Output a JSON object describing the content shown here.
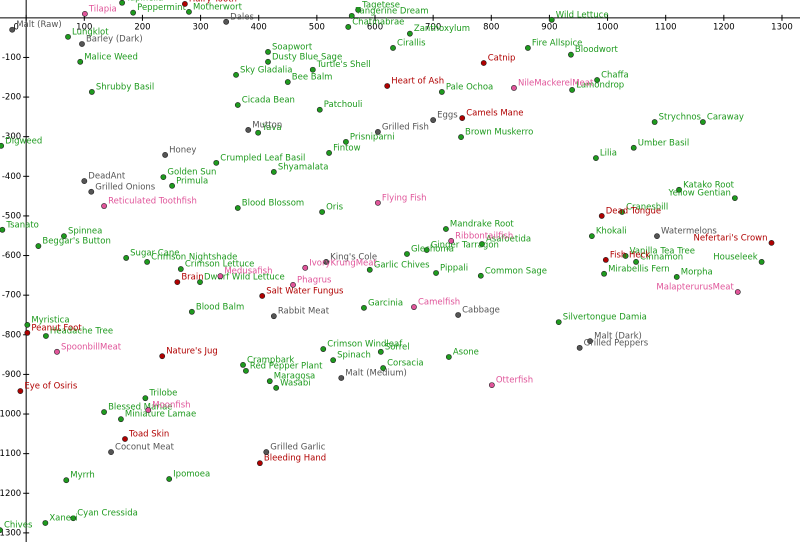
{
  "chart_data": {
    "type": "scatter",
    "xlim": [
      -45,
      1331
    ],
    "ylim": [
      -1323,
      45
    ],
    "xticks": [
      0,
      100,
      200,
      300,
      400,
      500,
      600,
      700,
      800,
      900,
      1000,
      1100,
      1200,
      1300
    ],
    "yticks": [
      -100,
      -200,
      -300,
      -400,
      -500,
      -600,
      -700,
      -800,
      -900,
      -1000,
      -1100,
      -1200,
      -1300
    ],
    "series": [
      {
        "color": "#1e9a1e",
        "points": [
          {
            "label": "Tapinella",
            "x": 165,
            "y": 38
          },
          {
            "label": "Peppermint",
            "x": 184,
            "y": 13
          },
          {
            "label": "Motherwort",
            "x": 280,
            "y": 15
          },
          {
            "label": "Tagetese",
            "x": 571,
            "y": 20
          },
          {
            "label": "Tangerine Dream",
            "x": 560,
            "y": 5
          },
          {
            "label": "Chatinabrae",
            "x": 554,
            "y": -23
          },
          {
            "label": "Zanthoxylum",
            "x": 660,
            "y": -40
          },
          {
            "label": "Wild Lettuce",
            "x": 904,
            "y": -5
          },
          {
            "label": "Lungklot",
            "x": 72,
            "y": -48
          },
          {
            "label": "Cirallis",
            "x": 631,
            "y": -76
          },
          {
            "label": "Fire Allspice",
            "x": 863,
            "y": -76
          },
          {
            "label": "Bloodwort",
            "x": 937,
            "y": -93
          },
          {
            "label": "Soapwort",
            "x": 416,
            "y": -86
          },
          {
            "label": "Dusty Blue Sage",
            "x": 416,
            "y": -111
          },
          {
            "label": "Malice Weed",
            "x": 93,
            "y": -111
          },
          {
            "label": "Turtle's Shell",
            "x": 493,
            "y": -131
          },
          {
            "label": "Sky Gladalia",
            "x": 361,
            "y": -144
          },
          {
            "label": "Bee Balm",
            "x": 450,
            "y": -162
          },
          {
            "label": "Pale Ochoa",
            "x": 715,
            "y": -187
          },
          {
            "label": "Chaffa",
            "x": 982,
            "y": -157
          },
          {
            "label": "Lamondrop",
            "x": 939,
            "y": -182
          },
          {
            "label": "Shrubby Basil",
            "x": 113,
            "y": -187
          },
          {
            "label": "Cicada Bean",
            "x": 364,
            "y": -220
          },
          {
            "label": "Patchouli",
            "x": 505,
            "y": -232
          },
          {
            "label": "Strychnos",
            "x": 1081,
            "y": -263
          },
          {
            "label": "Caraway",
            "x": 1164,
            "y": -263
          },
          {
            "label": "Yava",
            "x": 399,
            "y": -290
          },
          {
            "label": "Prisniparni",
            "x": 550,
            "y": -313
          },
          {
            "label": "Brown Muskerro",
            "x": 748,
            "y": -301
          },
          {
            "label": "Digweed",
            "x": -43,
            "y": -323
          },
          {
            "label": "Umber Basil",
            "x": 1045,
            "y": -328
          },
          {
            "label": "Lilia",
            "x": 980,
            "y": -354
          },
          {
            "label": "Fintow",
            "x": 521,
            "y": -341
          },
          {
            "label": "Crumpled Leaf Basil",
            "x": 327,
            "y": -366
          },
          {
            "label": "Shyamalata",
            "x": 426,
            "y": -389
          },
          {
            "label": "Golden Sun",
            "x": 236,
            "y": -402
          },
          {
            "label": "Primula",
            "x": 251,
            "y": -424
          },
          {
            "label": "Katako Root",
            "x": 1123,
            "y": -434
          },
          {
            "label": "Yellow Gentian",
            "x": 1219,
            "y": -455
          },
          {
            "label": "Blood Blossom",
            "x": 364,
            "y": -480
          },
          {
            "label": "Oris",
            "x": 509,
            "y": -490
          },
          {
            "label": "Cranesbill",
            "x": 1025,
            "y": -490
          },
          {
            "label": "Tsanato",
            "x": -41,
            "y": -535
          },
          {
            "label": "Spinnea",
            "x": 65,
            "y": -551
          },
          {
            "label": "Mandrake Root",
            "x": 722,
            "y": -533
          },
          {
            "label": "Khokali",
            "x": 973,
            "y": -551
          },
          {
            "label": "Asafoetida",
            "x": 784,
            "y": -571
          },
          {
            "label": "Beggar's Button",
            "x": 21,
            "y": -576
          },
          {
            "label": "Ginger Tarragon",
            "x": 689,
            "y": -586
          },
          {
            "label": "Glechoma",
            "x": 655,
            "y": -596
          },
          {
            "label": "Crimson Nightshade",
            "x": 208,
            "y": -616
          },
          {
            "label": "Sugar Cane",
            "x": 172,
            "y": -606
          },
          {
            "label": "Vanilla Tea Tree",
            "x": 1031,
            "y": -601
          },
          {
            "label": "Cinnamon",
            "x": 1049,
            "y": -616
          },
          {
            "label": "Houseleek",
            "x": 1265,
            "y": -616
          },
          {
            "label": "Crimson Lettuce",
            "x": 266,
            "y": -634
          },
          {
            "label": "Pippali",
            "x": 705,
            "y": -644
          },
          {
            "label": "Common Sage",
            "x": 782,
            "y": -651
          },
          {
            "label": "Garlic Chives",
            "x": 591,
            "y": -636
          },
          {
            "label": "Mirabellis Fern",
            "x": 994,
            "y": -646
          },
          {
            "label": "Morpha",
            "x": 1119,
            "y": -654
          },
          {
            "label": "Dwarf Wild Lettuce",
            "x": 299,
            "y": -667
          },
          {
            "label": "Blood Balm",
            "x": 285,
            "y": -742
          },
          {
            "label": "Garcinia",
            "x": 581,
            "y": -732
          },
          {
            "label": "Myristica",
            "x": 2,
            "y": -775
          },
          {
            "label": "Silvertongue Damia",
            "x": 916,
            "y": -768
          },
          {
            "label": "Headache Tree",
            "x": 34,
            "y": -803
          },
          {
            "label": "Crimson Windleaf",
            "x": 511,
            "y": -836
          },
          {
            "label": "Sorrel",
            "x": 610,
            "y": -843
          },
          {
            "label": "Spinach",
            "x": 528,
            "y": -864
          },
          {
            "label": "Crampbark",
            "x": 373,
            "y": -876
          },
          {
            "label": "Asone",
            "x": 727,
            "y": -856
          },
          {
            "label": "Red Pepper Plant",
            "x": 378,
            "y": -891
          },
          {
            "label": "Corsacia",
            "x": 614,
            "y": -884
          },
          {
            "label": "Maragosa",
            "x": 419,
            "y": -917
          },
          {
            "label": "Wasabi",
            "x": 430,
            "y": -934
          },
          {
            "label": "Trilobe",
            "x": 205,
            "y": -960
          },
          {
            "label": "Blessed Mariae",
            "x": 134,
            "y": -995
          },
          {
            "label": "Miniature Lamae",
            "x": 163,
            "y": -1013
          },
          {
            "label": "Myrrh",
            "x": 69,
            "y": -1167
          },
          {
            "label": "Ipomoea",
            "x": 246,
            "y": -1164
          },
          {
            "label": "Cyan Cressida",
            "x": 81,
            "y": -1263
          },
          {
            "label": "Xanesi",
            "x": 33,
            "y": -1275
          },
          {
            "label": "Chives",
            "x": -45,
            "y": -1293
          }
        ]
      },
      {
        "color": "#b00000",
        "points": [
          {
            "label": "Hairy Tooth",
            "x": 273,
            "y": 35
          },
          {
            "label": "Catnip",
            "x": 787,
            "y": -114
          },
          {
            "label": "Heart of Ash",
            "x": 621,
            "y": -172
          },
          {
            "label": "Camels Mane",
            "x": 750,
            "y": -253
          },
          {
            "label": "Dead Tongue",
            "x": 990,
            "y": -500
          },
          {
            "label": "Nefertari's Crown",
            "x": 1282,
            "y": -568
          },
          {
            "label": "Fish Heck",
            "x": 997,
            "y": -611
          },
          {
            "label": "Brain",
            "x": 260,
            "y": -667
          },
          {
            "label": "Salt Water Fungus",
            "x": 406,
            "y": -702
          },
          {
            "label": "Peanut Foot",
            "x": 2,
            "y": -795
          },
          {
            "label": "Nature's Jug",
            "x": 234,
            "y": -854
          },
          {
            "label": "Eye of Osiris",
            "x": -10,
            "y": -942
          },
          {
            "label": "Toad Skin",
            "x": 170,
            "y": -1063
          },
          {
            "label": "Bleeding Hand",
            "x": 402,
            "y": -1124
          }
        ]
      },
      {
        "color": "#555555",
        "points": [
          {
            "label": "Malt (Raw)",
            "x": -24,
            "y": -30
          },
          {
            "label": "Dales",
            "x": 344,
            "y": -10
          },
          {
            "label": "Barley (Dark)",
            "x": 96,
            "y": -66
          },
          {
            "label": "Eggs",
            "x": 700,
            "y": -258
          },
          {
            "label": "Mutton",
            "x": 382,
            "y": -283
          },
          {
            "label": "Grilled Fish",
            "x": 605,
            "y": -288
          },
          {
            "label": "Honey",
            "x": 239,
            "y": -346
          },
          {
            "label": "DeadAnt",
            "x": 100,
            "y": -412
          },
          {
            "label": "Grilled Onions",
            "x": 112,
            "y": -439
          },
          {
            "label": "Watermelons",
            "x": 1085,
            "y": -551
          },
          {
            "label": "King's Cole",
            "x": 516,
            "y": -616
          },
          {
            "label": "Rabbit Meat",
            "x": 426,
            "y": -753
          },
          {
            "label": "Cabbage",
            "x": 743,
            "y": -750
          },
          {
            "label": "Malt (Dark)",
            "x": 970,
            "y": -816
          },
          {
            "label": "Grilled Peppers",
            "x": 952,
            "y": -833
          },
          {
            "label": "Malt (Medium)",
            "x": 542,
            "y": -909
          },
          {
            "label": "Grilled Garlic",
            "x": 413,
            "y": -1096
          },
          {
            "label": "Coconut Meat",
            "x": 146,
            "y": -1096
          }
        ]
      },
      {
        "color": "#e0559a",
        "points": [
          {
            "label": "Tilapia",
            "x": 101,
            "y": 10
          },
          {
            "label": "NileMackerelMeat",
            "x": 839,
            "y": -177
          },
          {
            "label": "Reticulated Toothfish",
            "x": 134,
            "y": -475
          },
          {
            "label": "Flying Fish",
            "x": 605,
            "y": -467
          },
          {
            "label": "Ribbontailfish",
            "x": 731,
            "y": -563
          },
          {
            "label": "IvoryKrungMeat",
            "x": 480,
            "y": -631
          },
          {
            "label": "Medusafish",
            "x": 334,
            "y": -652
          },
          {
            "label": "MalapterurusMeat",
            "x": 1224,
            "y": -692
          },
          {
            "label": "Phagrus",
            "x": 459,
            "y": -674
          },
          {
            "label": "Camelfish",
            "x": 667,
            "y": -730
          },
          {
            "label": "SpoonbillMeat",
            "x": 53,
            "y": -843
          },
          {
            "label": "Otterfish",
            "x": 801,
            "y": -927
          },
          {
            "label": "Moonfish",
            "x": 210,
            "y": -990
          }
        ]
      }
    ]
  }
}
